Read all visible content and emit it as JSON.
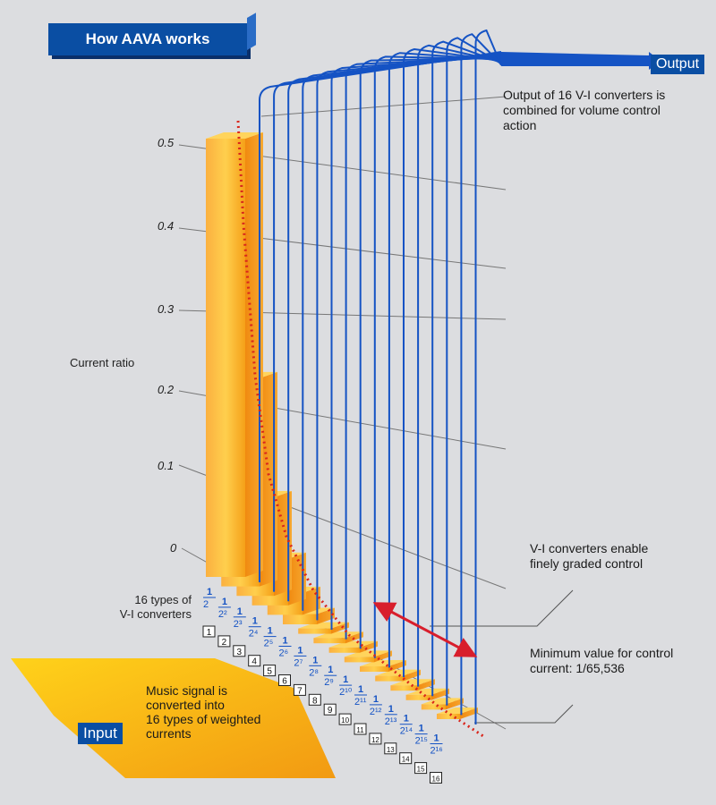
{
  "title": "How AAVA works",
  "output_label": "Output",
  "input_label": "Input",
  "y_axis_label": "Current ratio",
  "y_ticks": [
    "0.5",
    "0.4",
    "0.3",
    "0.2",
    "0.1",
    "0"
  ],
  "converters_label_line1": "16 types of",
  "converters_label_line2": "V-I converters",
  "output_note": [
    "Output of 16 V-I converters is",
    "combined for volume control",
    "action"
  ],
  "graded_note": [
    "V-I converters enable",
    "finely graded control"
  ],
  "minimum_note": [
    "Minimum value for control",
    "current: 1/65,536"
  ],
  "input_note": [
    "Music signal is",
    "converted into",
    "16 types of weighted",
    "currents"
  ],
  "fractions": [
    "1/2",
    "1/2²",
    "1/2³",
    "1/2⁴",
    "1/2⁵",
    "1/2⁶",
    "1/2⁷",
    "1/2⁸",
    "1/2⁹",
    "1/2¹⁰",
    "1/2¹¹",
    "1/2¹²",
    "1/2¹³",
    "1/2¹⁴",
    "1/2¹⁵",
    "1/2¹⁶"
  ],
  "fraction_denominators": [
    "2",
    "2²",
    "2³",
    "2⁴",
    "2⁵",
    "2⁶",
    "2⁷",
    "2⁸",
    "2⁹",
    "2¹⁰",
    "2¹¹",
    "2¹²",
    "2¹³",
    "2¹⁴",
    "2¹⁵",
    "2¹⁶"
  ],
  "converter_numbers": [
    "1",
    "2",
    "3",
    "4",
    "5",
    "6",
    "7",
    "8",
    "9",
    "10",
    "11",
    "12",
    "13",
    "14",
    "15",
    "16"
  ],
  "bar_values": [
    0.5,
    0.25,
    0.125,
    0.0625,
    0.03125,
    0.015625,
    0.0078125,
    0.00390625,
    0.001953125,
    0.0009765625,
    0.00048828125,
    0.000244140625,
    0.0001220703125,
    6.103515625e-05,
    3.0517578125e-05,
    1.52587890625e-05
  ],
  "colors": {
    "blue": "#0a4ea3",
    "bar": "#f5a623",
    "wire": "#1553c4",
    "curve": "#d9261c",
    "arrow": "#d81e2c"
  }
}
